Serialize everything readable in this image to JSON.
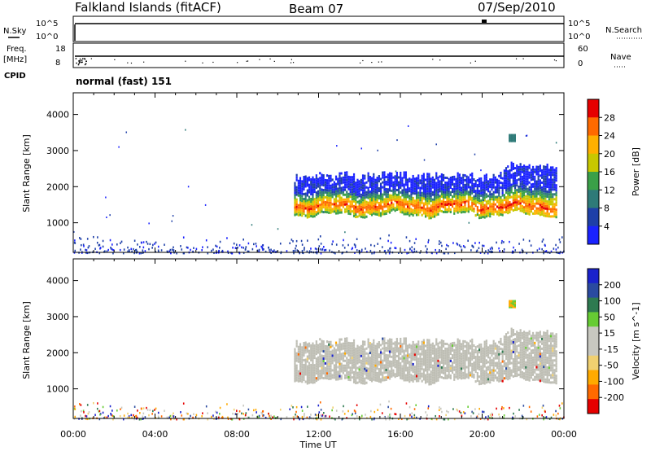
{
  "header": {
    "title": "Falkland Islands (fitACF)",
    "beam": "Beam 07",
    "date": "07/Sep/2010"
  },
  "status_panels": {
    "nsky_label": "N.Sky",
    "nsearch_label": "N.Search",
    "nsky_ticks": [
      "10^5",
      "10^0"
    ],
    "nsearch_ticks": [
      "10^5",
      "10^0"
    ],
    "freq_label_1": "Freq.",
    "freq_label_2": "[MHz]",
    "freq_ticks": [
      "18",
      "8"
    ],
    "nave_label": "Nave",
    "nave_ticks": [
      "60",
      "0"
    ],
    "cpid_label": "CPID",
    "cpid_value": "normal (fast) 151"
  },
  "colors": {
    "power_scale": [
      "#1a22ff",
      "#1e3fa8",
      "#2e7a78",
      "#3aa048",
      "#c8c800",
      "#ffb000",
      "#ff6a00",
      "#e60000"
    ],
    "velocity_scale": [
      "#e60000",
      "#ff6a00",
      "#ffaa00",
      "#f0d070",
      "#c8c8c0",
      "#c8c8c0",
      "#66cc33",
      "#2e7a50",
      "#2a4aa0",
      "#1a22cc"
    ],
    "ground_scatter": "#bebeb4"
  },
  "chart_data": [
    {
      "type": "heatmap",
      "title": "Power",
      "xlabel": "Time UT",
      "ylabel": "Slant Range [km]",
      "x_ticks": [
        "00:00",
        "04:00",
        "08:00",
        "12:00",
        "16:00",
        "20:00",
        "00:00"
      ],
      "y_ticks": [
        "1000",
        "2000",
        "3000",
        "4000"
      ],
      "xlim": [
        0,
        24
      ],
      "ylim": [
        180,
        4600
      ],
      "colorbar_label": "Power [dB]",
      "colorbar_ticks": [
        "4",
        "8",
        "12",
        "16",
        "20",
        "24",
        "28"
      ],
      "colorbar_range": [
        0,
        32
      ],
      "regions": [
        {
          "name": "main echo band",
          "start_hour": 10.8,
          "end_hour": 23.6,
          "lower_km": 1250,
          "upper_km": 2450,
          "peak_km": 1500,
          "peak_db": 28
        },
        {
          "name": "patch",
          "start_hour": 21.3,
          "end_hour": 21.6,
          "lower_km": 3300,
          "upper_km": 3500,
          "peak_db": 8
        },
        {
          "name": "near-range noise",
          "start_hour": 0,
          "end_hour": 24,
          "lower_km": 180,
          "upper_km": 700,
          "peak_db": 6
        }
      ]
    },
    {
      "type": "heatmap",
      "title": "Velocity",
      "xlabel": "Time UT",
      "ylabel": "Slant Range [km]",
      "x_ticks": [
        "00:00",
        "04:00",
        "08:00",
        "12:00",
        "16:00",
        "20:00",
        "00:00"
      ],
      "y_ticks": [
        "1000",
        "2000",
        "3000",
        "4000"
      ],
      "xlim": [
        0,
        24
      ],
      "ylim": [
        180,
        4600
      ],
      "colorbar_label": "Velocity [m s^-1]",
      "colorbar_ticks": [
        "200",
        "100",
        "50",
        "15",
        "-15",
        "-50",
        "-100",
        "-200"
      ],
      "colorbar_range": [
        -250,
        250
      ],
      "regions": [
        {
          "name": "ground scatter band",
          "start_hour": 10.8,
          "end_hour": 23.6,
          "lower_km": 1250,
          "upper_km": 2450,
          "velocity_ms": 0
        },
        {
          "name": "patch",
          "start_hour": 21.3,
          "end_hour": 21.6,
          "lower_km": 3300,
          "upper_km": 3500,
          "velocity_ms": 60
        }
      ]
    }
  ]
}
